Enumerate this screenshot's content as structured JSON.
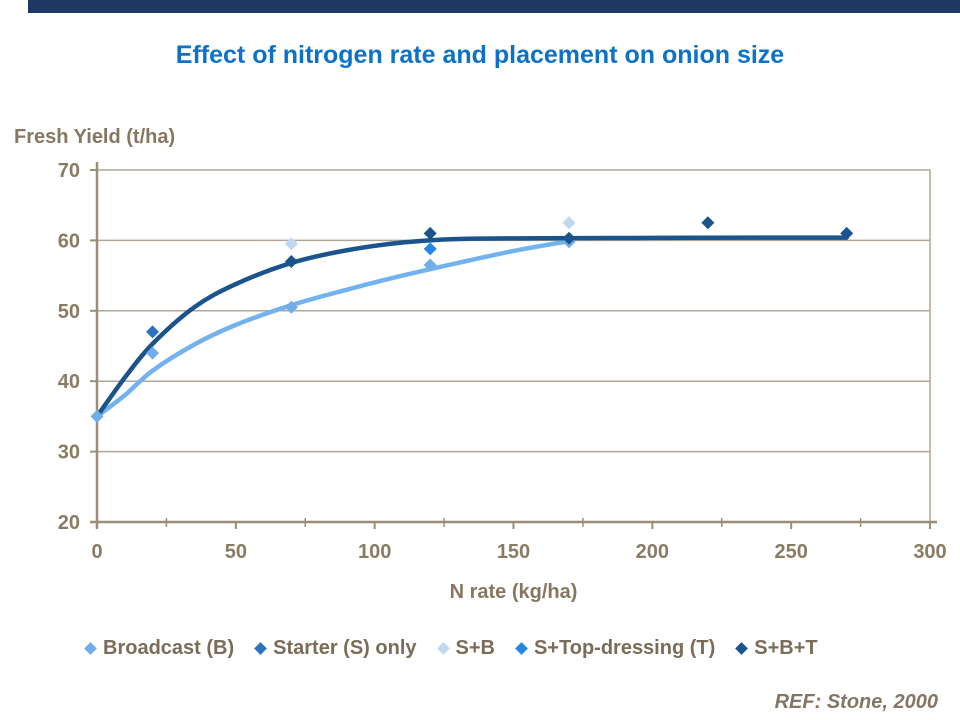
{
  "slide": {
    "title": "Effect of nitrogen rate and placement on onion size",
    "ref_note": "REF: Stone, 2000"
  },
  "colors": {
    "title_text": "#0B72C8",
    "top_accent_bar": "#1F3864",
    "axis_title_text": "#877761",
    "tick_label_text": "#8A7B63",
    "legend_text": "#7A6C58",
    "ref_text": "#857663",
    "gridline": "#B0A695",
    "axis_line": "#9A8E79"
  },
  "chart_data": {
    "type": "scatter",
    "title": "Effect of nitrogen rate and placement on onion size",
    "xlabel": "N rate (kg/ha)",
    "ylabel": "Fresh Yield (t/ha)",
    "xlim": [
      0,
      300
    ],
    "ylim": [
      20,
      70
    ],
    "xticks": [
      0,
      50,
      100,
      150,
      200,
      250,
      300
    ],
    "x_minor_tick_step": 25,
    "yticks": [
      70,
      60,
      50,
      40,
      30,
      20
    ],
    "grid": "horizontal",
    "legend_position": "bottom",
    "series": [
      {
        "name": "Broadcast (B)",
        "marker": "diamond",
        "color": "#6FAEE8",
        "points": [
          [
            0,
            35
          ],
          [
            20,
            44
          ],
          [
            70,
            50.5
          ],
          [
            120,
            56.5
          ],
          [
            170,
            59.8
          ]
        ],
        "trend_color": "#72B2EE",
        "trend": [
          [
            0,
            35
          ],
          [
            10,
            38
          ],
          [
            20,
            41.5
          ],
          [
            35,
            45.2
          ],
          [
            50,
            48
          ],
          [
            70,
            50.8
          ],
          [
            90,
            53
          ],
          [
            110,
            55
          ],
          [
            130,
            56.8
          ],
          [
            150,
            58.5
          ],
          [
            170,
            59.9
          ]
        ]
      },
      {
        "name": "Starter (S) only",
        "marker": "diamond",
        "color": "#2B72BE",
        "points": [
          [
            20,
            47
          ]
        ]
      },
      {
        "name": "S+B",
        "marker": "diamond",
        "color": "#BDD9F2",
        "points": [
          [
            70,
            59.5
          ],
          [
            170,
            62.5
          ]
        ]
      },
      {
        "name": "S+Top-dressing (T)",
        "marker": "diamond",
        "color": "#2587E0",
        "points": [
          [
            120,
            58.8
          ]
        ]
      },
      {
        "name": "S+B+T",
        "marker": "diamond",
        "color": "#1B548C",
        "points": [
          [
            70,
            57
          ],
          [
            120,
            61
          ],
          [
            170,
            60.3
          ],
          [
            220,
            62.5
          ],
          [
            270,
            61
          ]
        ],
        "trend_color": "#1B548C",
        "trend": [
          [
            0,
            35
          ],
          [
            10,
            40.5
          ],
          [
            20,
            45.3
          ],
          [
            35,
            50.5
          ],
          [
            50,
            53.8
          ],
          [
            70,
            56.8
          ],
          [
            90,
            58.6
          ],
          [
            110,
            59.7
          ],
          [
            130,
            60.2
          ],
          [
            160,
            60.3
          ],
          [
            200,
            60.35
          ],
          [
            240,
            60.4
          ],
          [
            270,
            60.4
          ]
        ]
      }
    ]
  }
}
